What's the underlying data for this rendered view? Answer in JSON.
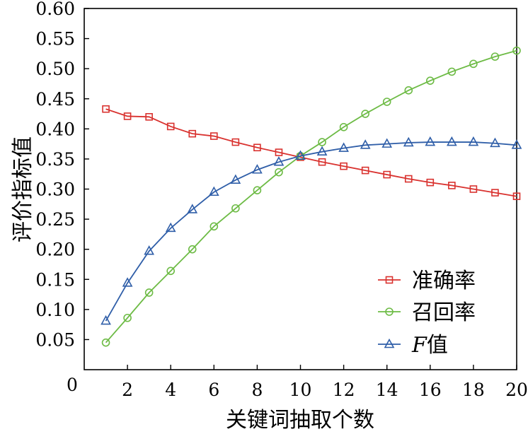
{
  "chart_data": {
    "type": "line",
    "title": "",
    "xlabel": "关键词抽取个数",
    "ylabel": "评价指标值",
    "xlim": [
      0,
      20
    ],
    "ylim": [
      0,
      0.6
    ],
    "xticks": [
      2,
      4,
      6,
      8,
      10,
      12,
      14,
      16,
      18,
      20
    ],
    "xtick_labels": [
      "2",
      "4",
      "6",
      "8",
      "10",
      "12",
      "14",
      "16",
      "18",
      "20"
    ],
    "origin_label": "0",
    "yticks": [
      0.05,
      0.1,
      0.15,
      0.2,
      0.25,
      0.3,
      0.35,
      0.4,
      0.45,
      0.5,
      0.55,
      0.6
    ],
    "ytick_labels": [
      "0.05",
      "0.10",
      "0.15",
      "0.20",
      "0.25",
      "0.30",
      "0.35",
      "0.40",
      "0.45",
      "0.50",
      "0.55",
      "0.60"
    ],
    "grid": false,
    "legend_position": "bottom-right",
    "x": [
      1,
      2,
      3,
      4,
      5,
      6,
      7,
      8,
      9,
      10,
      11,
      12,
      13,
      14,
      15,
      16,
      17,
      18,
      19,
      20
    ],
    "series": [
      {
        "name": "准确率",
        "name_prefix": "",
        "marker": "square",
        "color": "#d9322f",
        "values": [
          0.433,
          0.421,
          0.42,
          0.404,
          0.392,
          0.388,
          0.378,
          0.369,
          0.361,
          0.353,
          0.345,
          0.338,
          0.331,
          0.324,
          0.317,
          0.311,
          0.306,
          0.3,
          0.294,
          0.288
        ]
      },
      {
        "name": "召回率",
        "name_prefix": "",
        "marker": "circle",
        "color": "#6dbb45",
        "values": [
          0.045,
          0.086,
          0.128,
          0.164,
          0.2,
          0.238,
          0.268,
          0.298,
          0.328,
          0.355,
          0.378,
          0.403,
          0.425,
          0.445,
          0.464,
          0.48,
          0.495,
          0.508,
          0.52,
          0.53
        ]
      },
      {
        "name": "值",
        "name_prefix": "F",
        "marker": "triangle",
        "color": "#2f5ea8",
        "values": [
          0.081,
          0.144,
          0.197,
          0.235,
          0.266,
          0.295,
          0.315,
          0.332,
          0.345,
          0.355,
          0.362,
          0.368,
          0.373,
          0.375,
          0.377,
          0.378,
          0.378,
          0.378,
          0.376,
          0.373
        ]
      }
    ]
  }
}
